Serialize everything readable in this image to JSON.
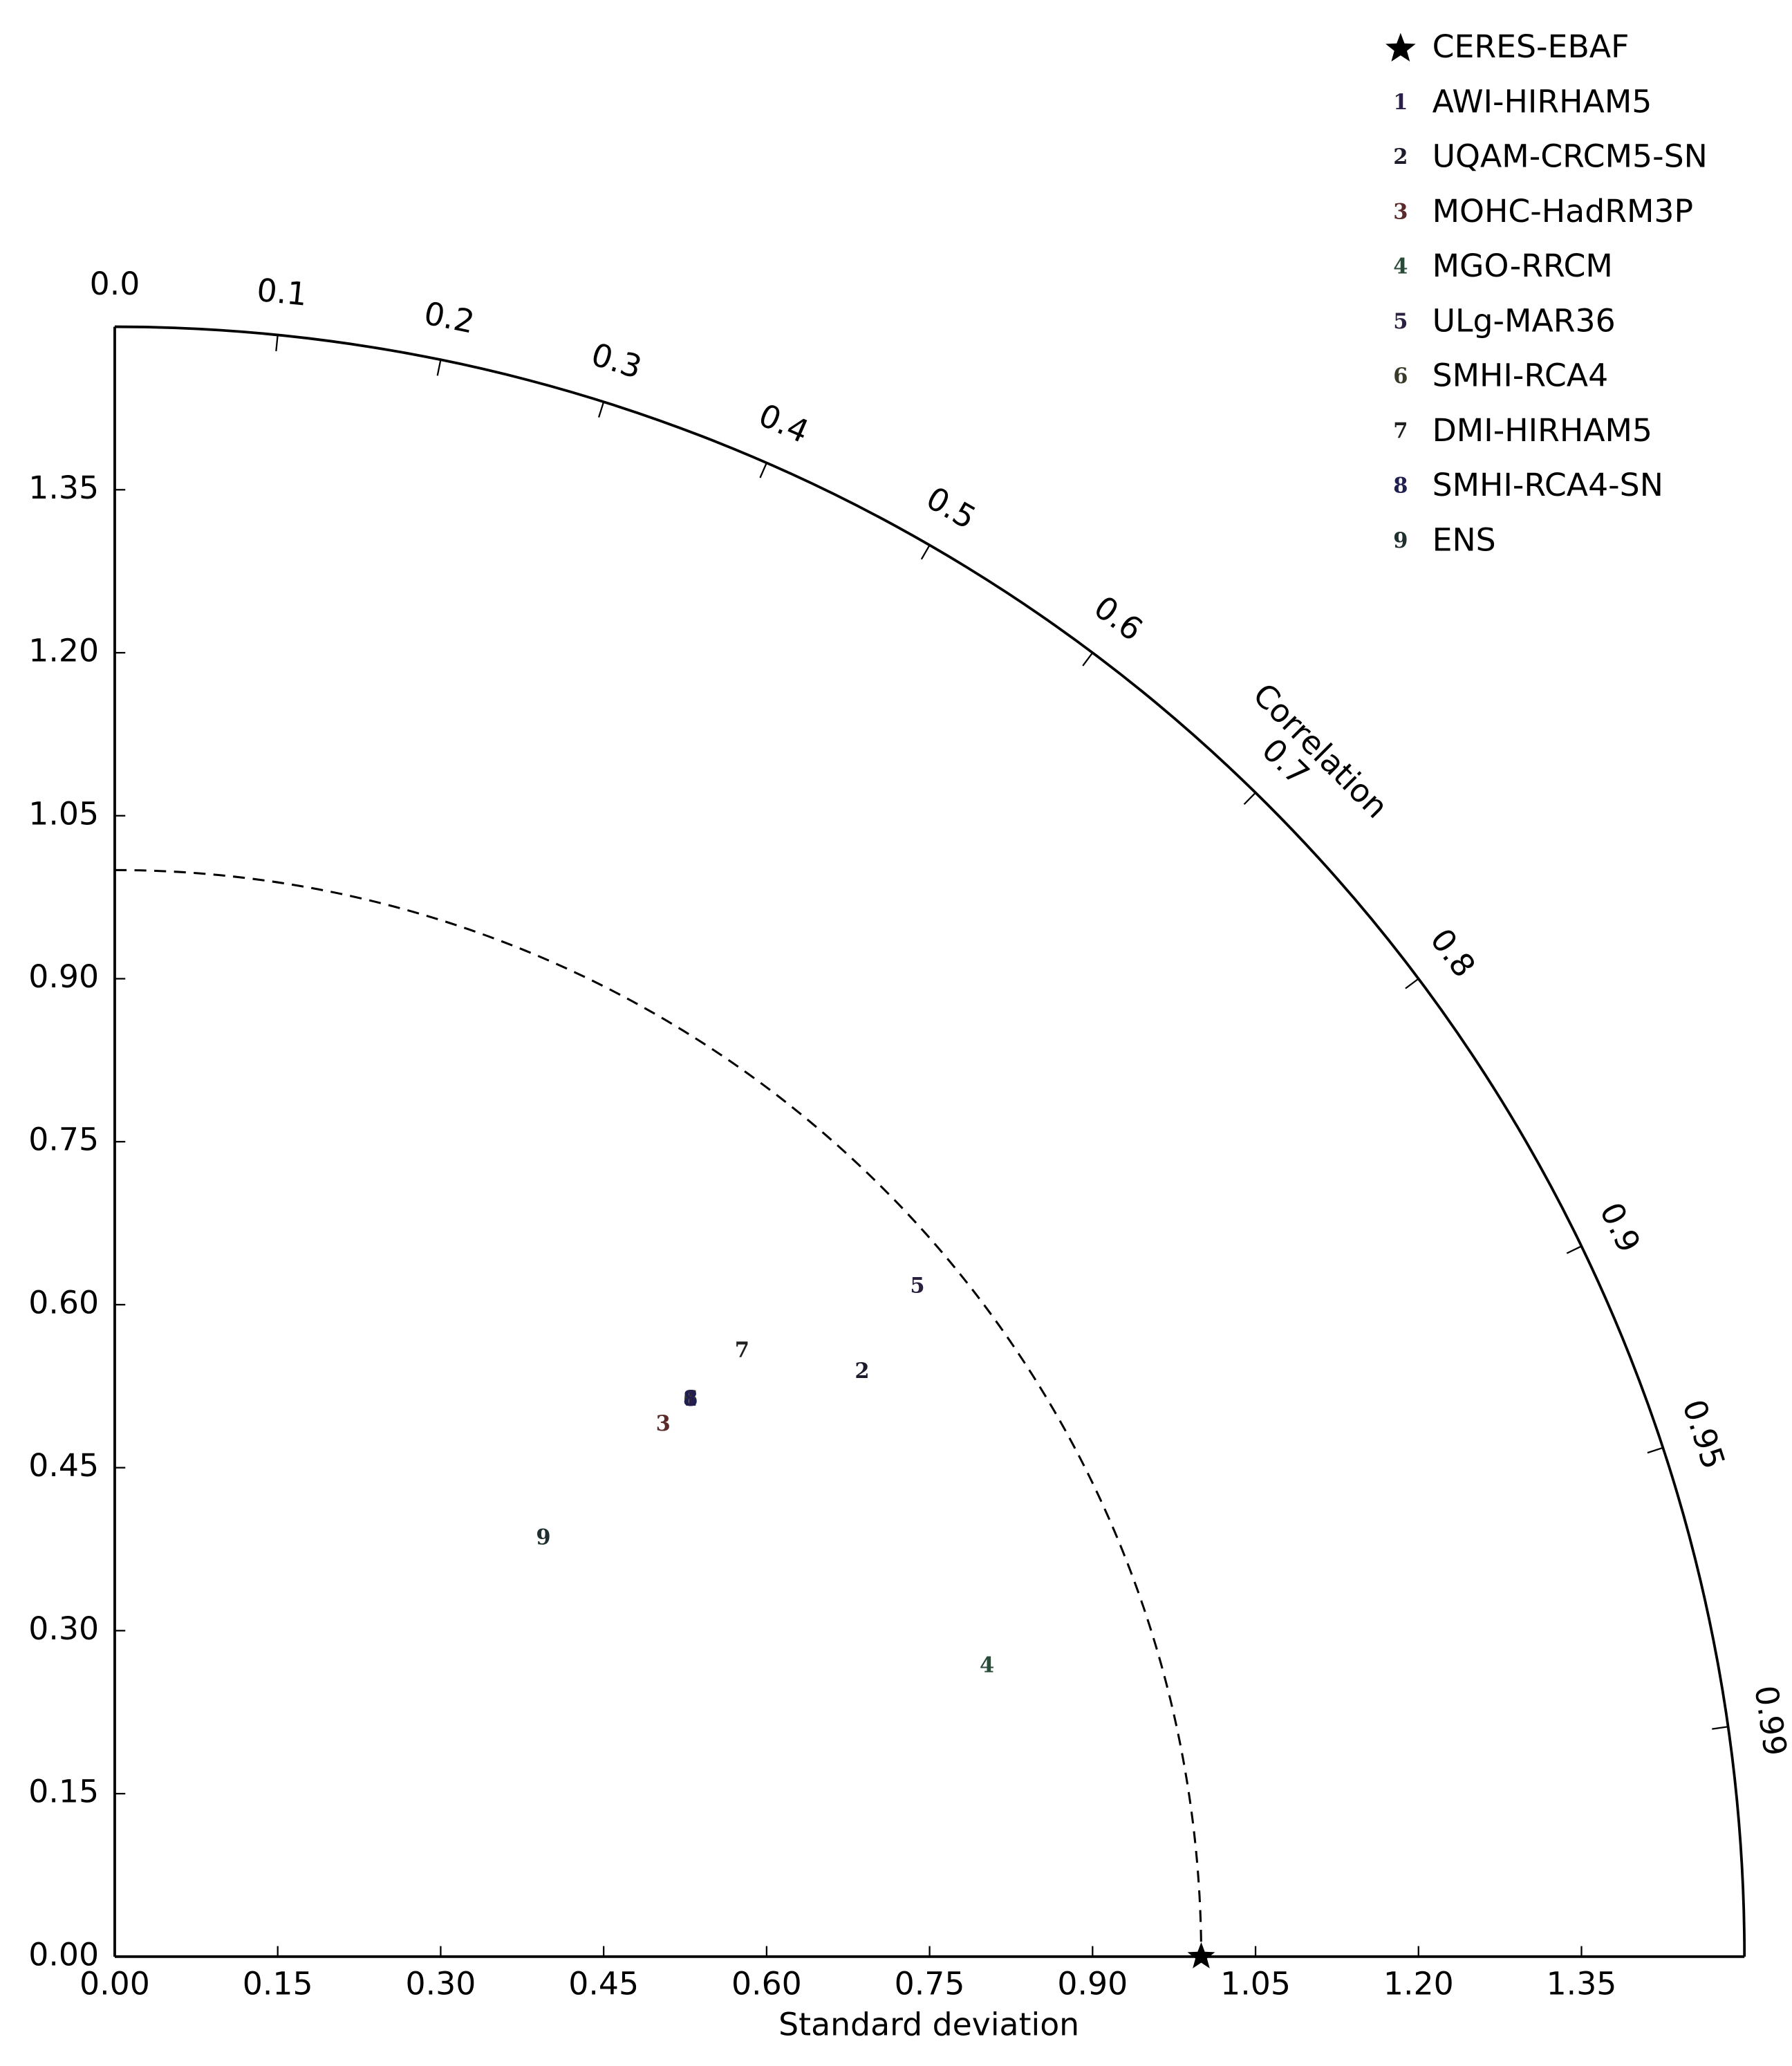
{
  "chart_data": {
    "type": "taylor",
    "xlabel": "Standard deviation",
    "corr_label": "Correlation",
    "xlim": [
      0,
      1.5
    ],
    "ylim": [
      0,
      1.5
    ],
    "xticks": [
      {
        "value": 0,
        "label": "0.00"
      },
      0.15,
      {
        "value": 0.3,
        "label": "0.30"
      },
      0.45,
      {
        "value": 0.6,
        "label": "0.60"
      },
      0.75,
      {
        "value": 0.9,
        "label": "0.90"
      },
      1.05,
      {
        "value": 1.2,
        "label": "1.20"
      },
      1.35
    ],
    "yticks": [
      {
        "value": 0,
        "label": "0.00"
      },
      0.15,
      {
        "value": 0.3,
        "label": "0.30"
      },
      0.45,
      {
        "value": 0.6,
        "label": "0.60"
      },
      0.75,
      {
        "value": 0.9,
        "label": "0.90"
      },
      1.05,
      {
        "value": 1.2,
        "label": "1.20"
      },
      1.35
    ],
    "corr_ticks": [
      {
        "value": 0,
        "label": "0.0"
      },
      0.1,
      0.2,
      0.3,
      0.4,
      0.5,
      0.6,
      0.7,
      0.8,
      0.9,
      0.95,
      0.99
    ],
    "reference": {
      "name": "CERES-EBAF",
      "std": 1.0,
      "correlation": 1.0,
      "color": "#000000"
    },
    "series": [
      {
        "name": "AWI-HIRHAM5",
        "marker": "1",
        "color": "#2b1f4a",
        "std": 0.737,
        "correlation": 0.719
      },
      {
        "name": "UQAM-CRCM5-SN",
        "marker": "2",
        "color": "#1c1c2c",
        "std": 0.873,
        "correlation": 0.788
      },
      {
        "name": "MOHC-HadRM3P",
        "marker": "3",
        "color": "#5a2a2a",
        "std": 0.703,
        "correlation": 0.718
      },
      {
        "name": "MGO-RRCM",
        "marker": "4",
        "color": "#2a4a3a",
        "std": 0.846,
        "correlation": 0.949
      },
      {
        "name": "ULg-MAR36",
        "marker": "5",
        "color": "#2a2040",
        "std": 0.962,
        "correlation": 0.768
      },
      {
        "name": "SMHI-RCA4",
        "marker": "6",
        "color": "#3a3a2a",
        "std": 0.737,
        "correlation": 0.719
      },
      {
        "name": "DMI-HIRHAM5",
        "marker": "7",
        "color": "#202020",
        "std": 0.802,
        "correlation": 0.72
      },
      {
        "name": "SMHI-RCA4-SN",
        "marker": "8",
        "color": "#202050",
        "std": 0.737,
        "correlation": 0.719
      },
      {
        "name": "ENS",
        "marker": "9",
        "color": "#203030",
        "std": 0.551,
        "correlation": 0.716
      }
    ]
  }
}
